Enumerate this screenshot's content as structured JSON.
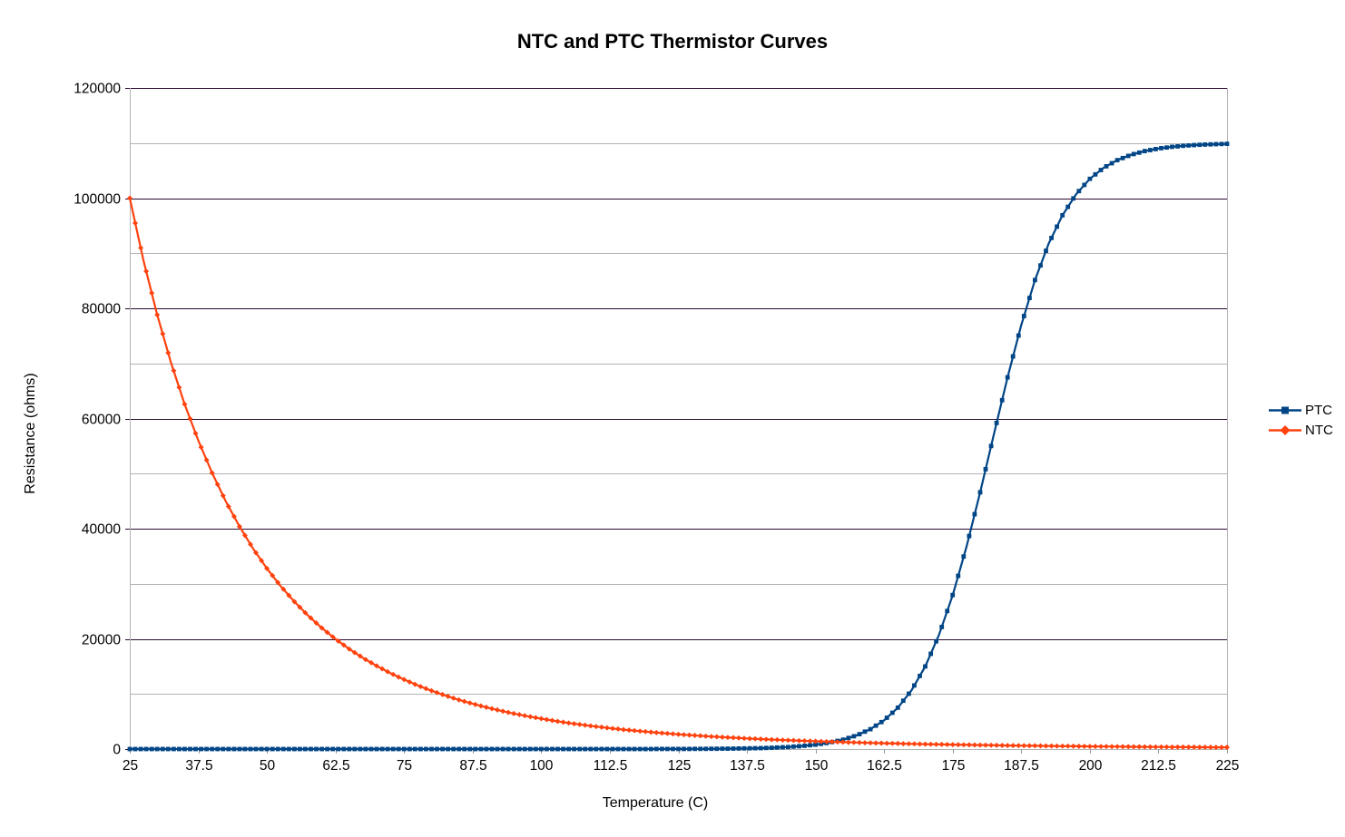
{
  "title": "NTC and PTC Thermistor Curves",
  "colors": {
    "ptc": "#004586",
    "ntc": "#FF420E",
    "grid_major": "#2b0a30",
    "grid_minor": "#b3b3b3",
    "axis_line": "#b3b3b3",
    "x_tick": "#999999",
    "text": "#000000",
    "background": "#ffffff"
  },
  "legend": {
    "position": "right",
    "items": [
      {
        "label": "PTC",
        "marker": "square",
        "color": "#004586"
      },
      {
        "label": "NTC",
        "marker": "diamond",
        "color": "#FF420E"
      }
    ]
  },
  "chart_data": {
    "type": "line",
    "title": "NTC and PTC Thermistor Curves",
    "xlabel": "Temperature (C)",
    "ylabel": "Resistance (ohms)",
    "xlim": [
      25,
      225
    ],
    "ylim": [
      0,
      120000
    ],
    "grid": "horizontal only: major dark lines every 20000, minor gray lines every 10000",
    "legend_position": "right",
    "x_ticks": [
      25,
      37.5,
      50,
      62.5,
      75,
      87.5,
      100,
      112.5,
      125,
      137.5,
      150,
      162.5,
      175,
      187.5,
      200,
      212.5,
      225
    ],
    "y_ticks_major": [
      0,
      20000,
      40000,
      60000,
      80000,
      100000,
      120000
    ],
    "y_ticks_minor": [
      10000,
      30000,
      50000,
      70000,
      90000,
      110000
    ],
    "x": [
      25,
      27.5,
      30,
      32.5,
      35,
      37.5,
      40,
      42.5,
      45,
      47.5,
      50,
      52.5,
      55,
      57.5,
      60,
      62.5,
      65,
      67.5,
      70,
      72.5,
      75,
      77.5,
      80,
      82.5,
      85,
      87.5,
      90,
      92.5,
      95,
      97.5,
      100,
      102.5,
      105,
      107.5,
      110,
      112.5,
      115,
      117.5,
      120,
      122.5,
      125,
      127.5,
      130,
      132.5,
      135,
      137.5,
      140,
      142.5,
      145,
      147.5,
      150,
      152.5,
      155,
      157.5,
      160,
      162.5,
      165,
      167.5,
      170,
      172.5,
      175,
      177.5,
      180,
      182.5,
      185,
      187.5,
      190,
      192.5,
      195,
      197.5,
      200,
      202.5,
      205,
      207.5,
      210,
      212.5,
      215,
      217.5,
      220,
      222.5,
      225
    ],
    "series": [
      {
        "name": "PTC",
        "color": "#004586",
        "marker": "square",
        "values": [
          0,
          0,
          0,
          0,
          0,
          0,
          0,
          0,
          0,
          0,
          0,
          0,
          0,
          0,
          0,
          0,
          0,
          0,
          0,
          0,
          0,
          0,
          0,
          0,
          0,
          0,
          0,
          0,
          0,
          0,
          0,
          0,
          1,
          1,
          2,
          3,
          4,
          5,
          8,
          12,
          17,
          25,
          37,
          54,
          80,
          117,
          172,
          252,
          370,
          542,
          794,
          1164,
          1700,
          2481,
          3606,
          5217,
          7498,
          10670,
          14998,
          20701,
          27946,
          36692,
          46598,
          57113,
          67476,
          76968,
          85138,
          91751,
          96888,
          100724,
          103510,
          105500,
          106893,
          107868,
          108538,
          108999,
          109319,
          109535,
          109683,
          109784,
          109853
        ]
      },
      {
        "name": "NTC",
        "color": "#FF420E",
        "marker": "diamond",
        "values": [
          100000,
          88699,
          78831,
          70195,
          62624,
          55972,
          50117,
          44952,
          40390,
          36350,
          32768,
          29585,
          26754,
          24230,
          21977,
          19963,
          18159,
          16541,
          15088,
          13781,
          12603,
          11541,
          10581,
          9713,
          8927,
          8214,
          7567,
          6978,
          6443,
          5955,
          5509,
          5103,
          4731,
          4390,
          4078,
          3792,
          3529,
          3288,
          3066,
          2861,
          2672,
          2498,
          2337,
          2189,
          2051,
          1924,
          1806,
          1696,
          1594,
          1500,
          1412,
          1330,
          1254,
          1183,
          1117,
          1055,
          997,
          943,
          893,
          846,
          801,
          760,
          721,
          684,
          650,
          617,
          587,
          559,
          532,
          506,
          483,
          460,
          439,
          419,
          400,
          382,
          365,
          349,
          334,
          319,
          305
        ]
      }
    ]
  }
}
